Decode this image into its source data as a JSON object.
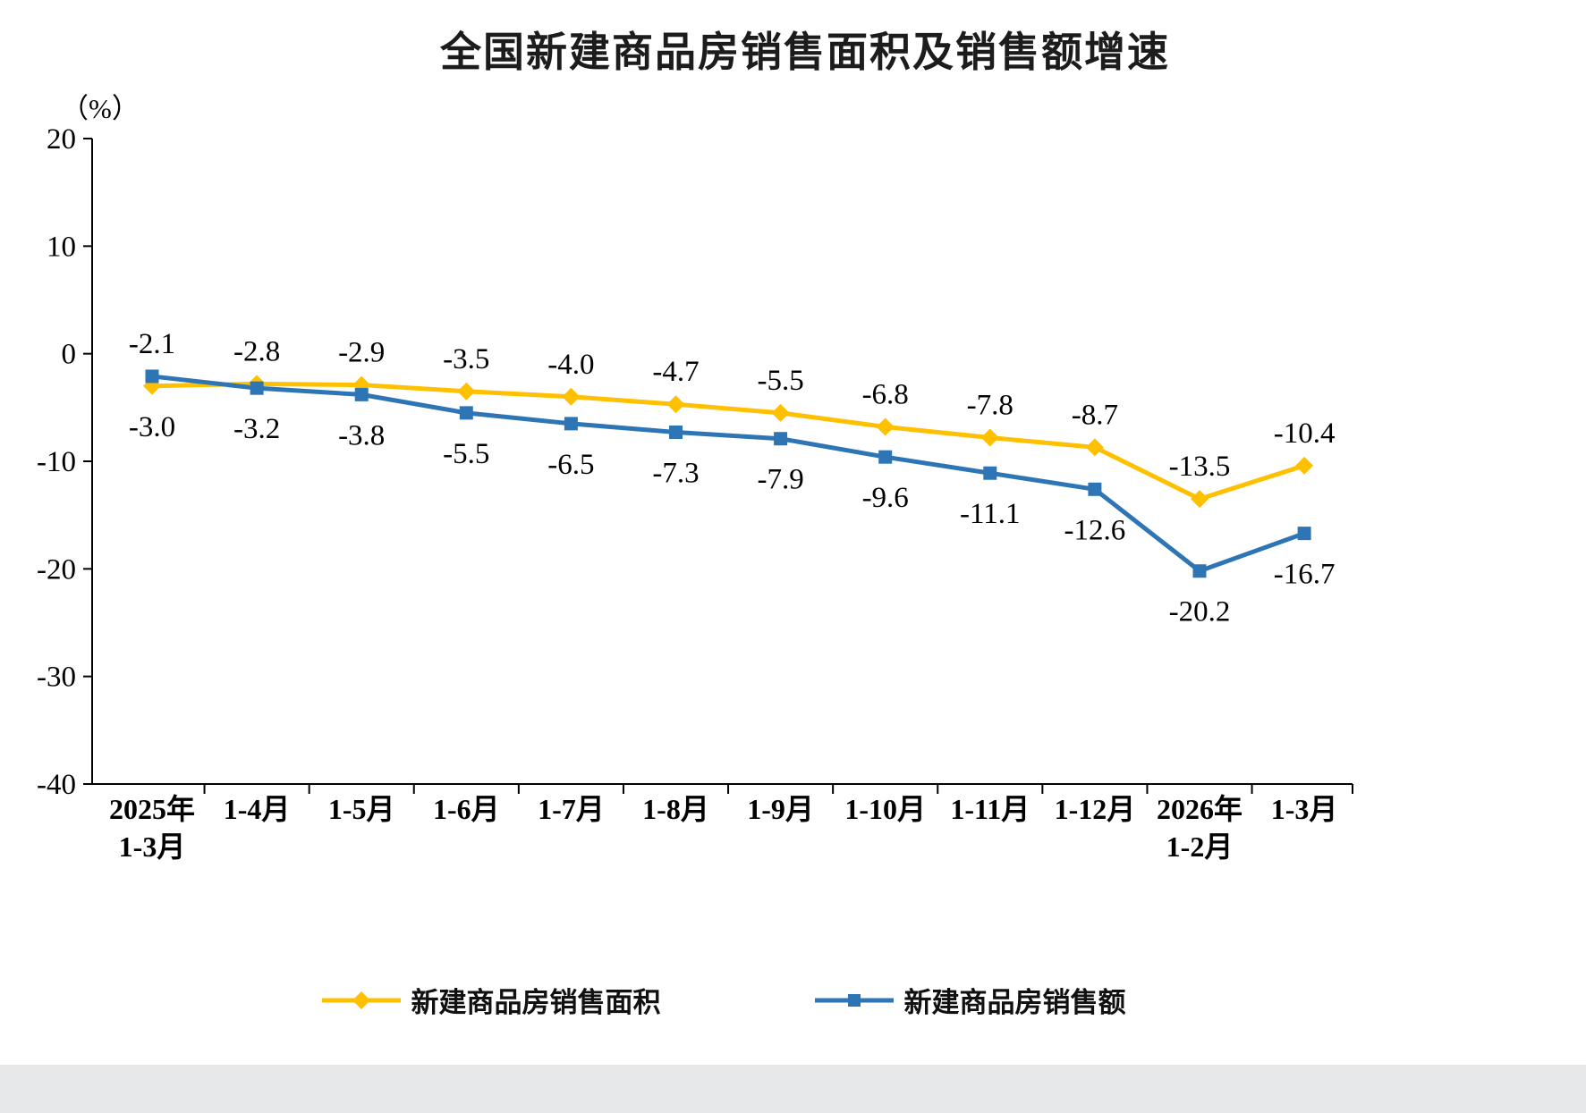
{
  "chart_data": {
    "type": "line",
    "title": "全国新建商品房销售面积及销售额增速",
    "ylabel": "（%）",
    "xlabel": "",
    "ylim": [
      -40,
      20
    ],
    "y_ticks": [
      20,
      10,
      0,
      -10,
      -20,
      -30,
      -40
    ],
    "grid": false,
    "legend_position": "bottom",
    "categories": [
      "2025年\n1-3月",
      "1-4月",
      "1-5月",
      "1-6月",
      "1-7月",
      "1-8月",
      "1-9月",
      "1-10月",
      "1-11月",
      "1-12月",
      "2026年\n1-2月",
      "1-3月"
    ],
    "series": [
      {
        "name": "新建商品房销售面积",
        "color": "#FFC000",
        "marker": "diamond",
        "values": [
          -3.0,
          -2.8,
          -2.9,
          -3.5,
          -4.0,
          -4.7,
          -5.5,
          -6.8,
          -7.8,
          -8.7,
          -13.5,
          -10.4
        ]
      },
      {
        "name": "新建商品房销售额",
        "color": "#2E75B6",
        "marker": "square",
        "values": [
          -2.1,
          -3.2,
          -3.8,
          -5.5,
          -6.5,
          -7.3,
          -7.9,
          -9.6,
          -11.1,
          -12.6,
          -20.2,
          -16.7
        ]
      }
    ]
  },
  "page": {
    "footer_strip_color": "#e7e8ea",
    "axis_color": "#000000",
    "label_color": "#000000"
  }
}
